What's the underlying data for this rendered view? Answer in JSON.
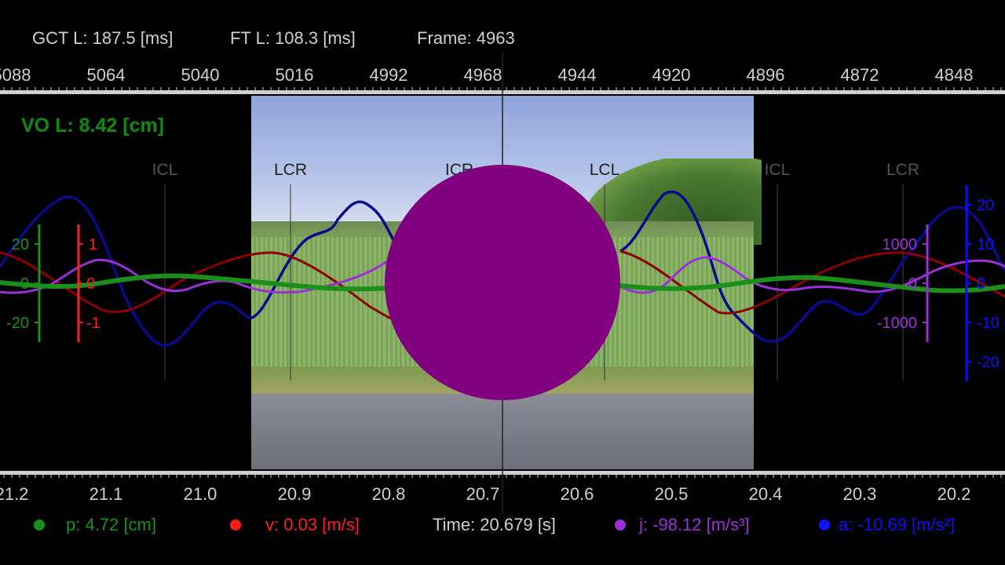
{
  "header": {
    "gct": "GCT L: 187.5 [ms]",
    "ft": "FT L: 108.3 [ms]",
    "frame": "Frame: 4963"
  },
  "top_axis": {
    "labels": [
      "5088",
      "5064",
      "5040",
      "5016",
      "4992",
      "4968",
      "4944",
      "4920",
      "4896",
      "4872",
      "4848"
    ]
  },
  "bottom_axis": {
    "labels": [
      "21.2",
      "21.1",
      "21.0",
      "20.9",
      "20.8",
      "20.7",
      "20.6",
      "20.5",
      "20.4",
      "20.3",
      "20.2"
    ]
  },
  "vo_readout": "VO L: 8.42 [cm]",
  "events": [
    "ICL",
    "LCR",
    "ICR",
    "LCL",
    "ICL",
    "LCR"
  ],
  "scales": {
    "green": [
      "20",
      "0",
      "-20"
    ],
    "red": [
      "1",
      "0",
      "-1"
    ],
    "purple": [
      "1000",
      "0",
      "-1000"
    ],
    "blue": [
      "20",
      "10",
      "0",
      "-10",
      "-20"
    ]
  },
  "legend": {
    "p": "p: 4.72 [cm]",
    "v": "v: 0.03 [m/s]",
    "time": "Time: 20.679 [s]",
    "j": "j: -98.12 [m/s³]",
    "a": "a: -10.69 [m/s²]"
  },
  "colors": {
    "position": "#1a8f1a",
    "velocity": "#8b0000",
    "velocity_scale": "#ff2020",
    "jerk": "#9b30d9",
    "accel": "#0a0a8c",
    "accel_scale": "#1010ff",
    "occluder": "#800080"
  }
}
